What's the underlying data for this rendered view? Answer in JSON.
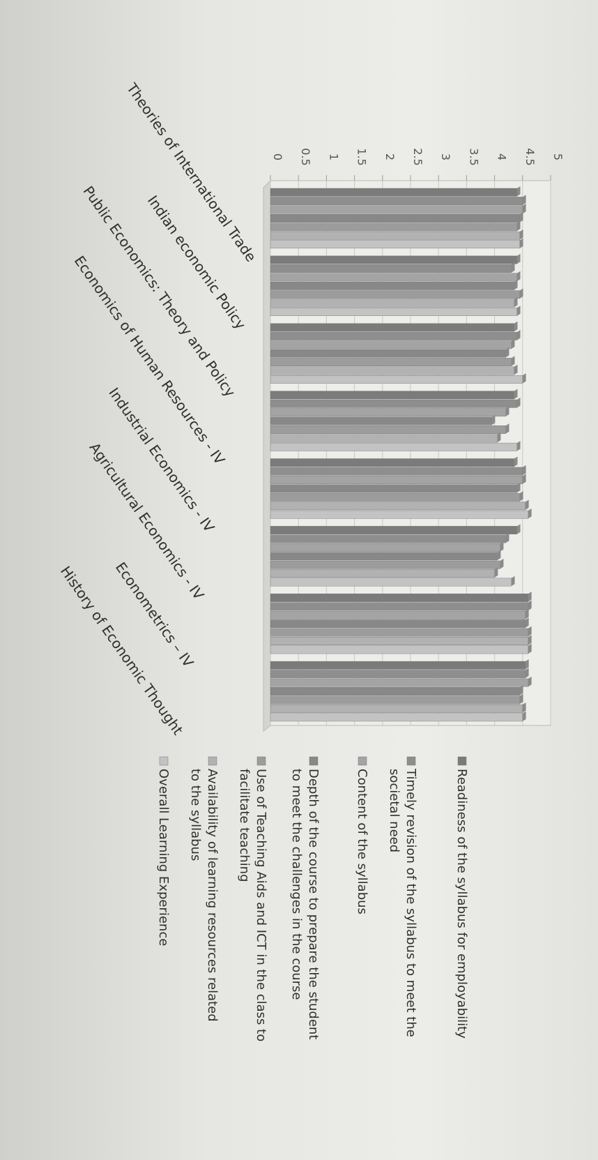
{
  "chart_data": {
    "type": "bar",
    "orientation": "rotated-90-clockwise",
    "ylim": [
      0,
      5
    ],
    "yticks": [
      "0",
      "0.5",
      "1",
      "1.5",
      "2",
      "2.5",
      "3",
      "3.5",
      "4",
      "4.5",
      "5"
    ],
    "grid": true,
    "legend_position": "right",
    "categories": [
      "Theories of International Trade",
      "Indian economic Policy",
      "Public Economics: Theory and Policy",
      "Economics of Human Resources - IV",
      "Industrial Economics - IV",
      "Agricultural Economics - IV",
      "Econometrics – IV",
      "History of Economic Thought"
    ],
    "series": [
      {
        "name": "Readiness of the syllabus for employability",
        "color": "#7b7b7b",
        "values": [
          4.4,
          4.4,
          4.35,
          4.35,
          4.35,
          4.4,
          4.6,
          4.55
        ]
      },
      {
        "name": "Timely revision of the syllabus to meet the societal need",
        "color": "#8e8e8e",
        "values": [
          4.5,
          4.3,
          4.4,
          4.4,
          4.5,
          4.2,
          4.6,
          4.55
        ]
      },
      {
        "name": "Content of the syllabus",
        "color": "#a4a4a4",
        "values": [
          4.5,
          4.4,
          4.3,
          4.2,
          4.5,
          4.1,
          4.55,
          4.6
        ]
      },
      {
        "name": "Depth of the course to prepare the student to meet the challenges in the course",
        "color": "#888888",
        "values": [
          4.45,
          4.35,
          4.2,
          3.95,
          4.4,
          4.05,
          4.55,
          4.45
        ]
      },
      {
        "name": "Use of Teaching Aids and ICT in the class to facilitate teaching",
        "color": "#9c9c9c",
        "values": [
          4.4,
          4.45,
          4.3,
          4.2,
          4.45,
          4.1,
          4.6,
          4.45
        ]
      },
      {
        "name": "Availability of learning resources related to the syllabus",
        "color": "#b2b2b2",
        "values": [
          4.45,
          4.35,
          4.35,
          4.05,
          4.55,
          4.0,
          4.6,
          4.5
        ]
      },
      {
        "name": "Overall Learning Experience",
        "color": "#c3c3c3",
        "values": [
          4.45,
          4.4,
          4.5,
          4.4,
          4.6,
          4.3,
          4.6,
          4.5
        ]
      }
    ]
  }
}
